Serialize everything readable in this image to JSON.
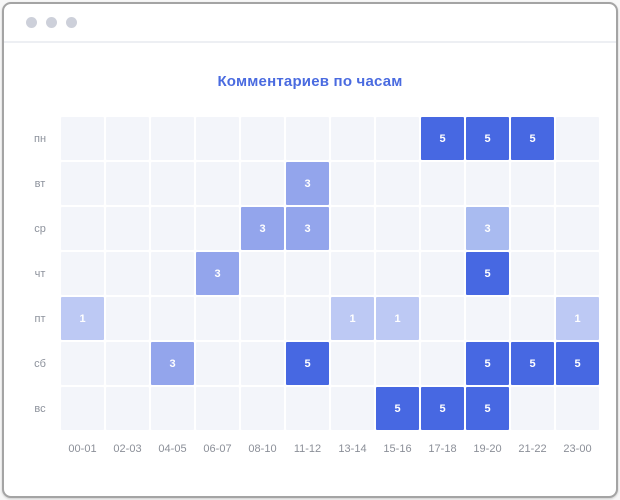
{
  "window": {
    "control_dot_color": "#cdd0da"
  },
  "chart_data": {
    "type": "heatmap",
    "title": "Комментариев по часам",
    "title_color": "#4a6be0",
    "x_labels": [
      "00-01",
      "02-03",
      "04-05",
      "06-07",
      "08-10",
      "11-12",
      "13-14",
      "15-16",
      "17-18",
      "19-20",
      "21-22",
      "23-00"
    ],
    "y_labels": [
      "пн",
      "вт",
      "ср",
      "чт",
      "пт",
      "сб",
      "вс"
    ],
    "matrix": [
      [
        "",
        "",
        "",
        "",
        "",
        "",
        "",
        "",
        "5",
        "5",
        "5",
        ""
      ],
      [
        "",
        "",
        "",
        "",
        "",
        "3",
        "",
        "",
        "",
        "",
        "",
        ""
      ],
      [
        "",
        "",
        "",
        "",
        "3",
        "3",
        "",
        "",
        "",
        "3l",
        "",
        ""
      ],
      [
        "",
        "",
        "",
        "3",
        "",
        "",
        "",
        "",
        "",
        "5",
        "",
        ""
      ],
      [
        "1",
        "",
        "",
        "",
        "",
        "",
        "1",
        "1",
        "",
        "",
        "",
        "1"
      ],
      [
        "",
        "",
        "3",
        "",
        "",
        "5",
        "",
        "",
        "",
        "5",
        "5",
        "5"
      ],
      [
        "",
        "",
        "",
        "",
        "",
        "",
        "",
        "5",
        "5",
        "5",
        "",
        ""
      ]
    ],
    "value_range": [
      0,
      5
    ],
    "palette": {
      "": "#f3f5fa",
      "1": "#bdc9f4",
      "3": "#93a5ec",
      "3l": "#a9bbf0",
      "5": "#4768e2"
    },
    "legend_position": "none",
    "grid": true
  }
}
